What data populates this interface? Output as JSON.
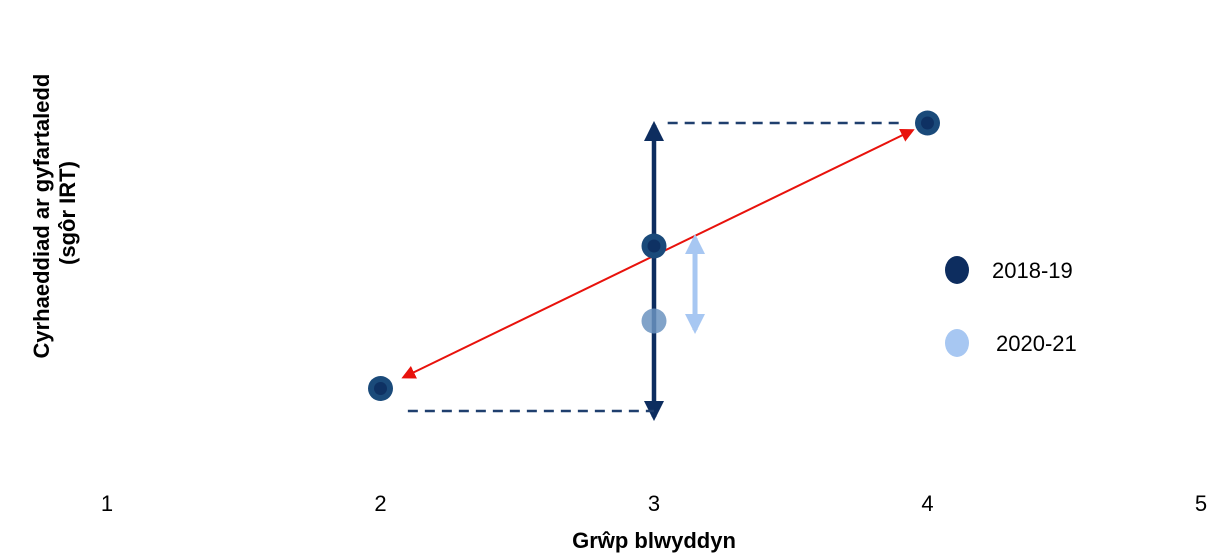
{
  "chart_data": {
    "type": "scatter",
    "title": "",
    "xlabel": "Grŵp blwyddyn",
    "ylabel": [
      "Cyrhaeddiad ar gyfartaledd",
      "(sgôr IRT)"
    ],
    "x_ticks": [
      1,
      2,
      3,
      4,
      5
    ],
    "xlim": [
      1,
      5
    ],
    "grid": false,
    "legend_position": "right",
    "series": [
      {
        "name": "2018-19",
        "color": "#1a4a7a",
        "points": [
          {
            "x": 2,
            "level": 0.115
          },
          {
            "x": 3,
            "level": 0.59
          },
          {
            "x": 4,
            "level": 1.0
          }
        ]
      },
      {
        "name": "2020-21",
        "color": "#6b93c0",
        "points": [
          {
            "x": 3,
            "level": 0.34
          }
        ]
      }
    ],
    "annotations": [
      {
        "type": "red-double-arrow",
        "from": {
          "x": 2,
          "series": "2018-19"
        },
        "to": {
          "x": 4,
          "series": "2018-19"
        },
        "color": "#e8120c"
      },
      {
        "type": "navy-vertical-double-arrow",
        "x": 3,
        "level_range": [
          0.04,
          1.0
        ],
        "color": "#0d2d5f"
      },
      {
        "type": "dashed-guide",
        "x_range": [
          2.1,
          3
        ],
        "level": 0.04,
        "color": "#1f3f6e"
      },
      {
        "type": "dashed-guide",
        "x_range": [
          3.05,
          3.9
        ],
        "level": 1.0,
        "color": "#1f3f6e"
      },
      {
        "type": "light-blue-double-arrow",
        "x": 3.15,
        "level_range": [
          0.31,
          0.63
        ],
        "color": "#a7c7f2"
      }
    ],
    "legend": [
      {
        "label": "2018-19",
        "color": "#0d2d5f"
      },
      {
        "label": "2020-21",
        "color": "#a7c7f2"
      }
    ]
  }
}
